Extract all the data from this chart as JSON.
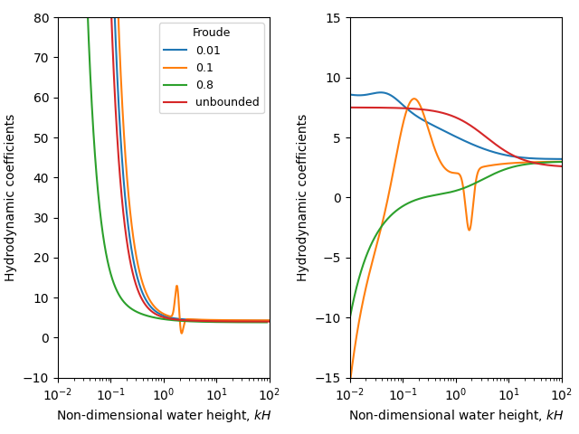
{
  "froude_labels": [
    "0.01",
    "0.1",
    "0.8",
    "unbounded"
  ],
  "colors": [
    "#1f77b4",
    "#ff7f0e",
    "#2ca02c",
    "#d62728"
  ],
  "xlabel": "Non-dimensional water height, $kH$",
  "ylabel": "Hydrodynamic coefficients",
  "legend_title": "Froude",
  "kH_min": 0.01,
  "kH_max": 100,
  "n_points": 5000,
  "left_ylim": [
    -10,
    80
  ],
  "right_ylim": [
    -15,
    15
  ]
}
